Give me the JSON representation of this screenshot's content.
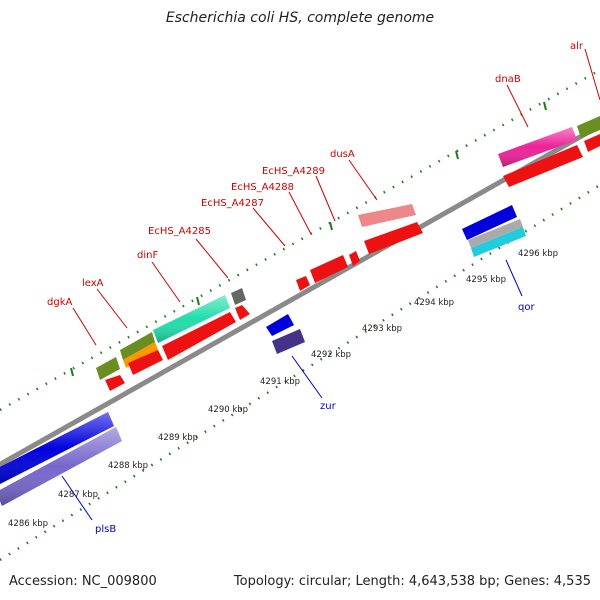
{
  "title": "Escherichia coli HS, complete genome",
  "accession_text": "Accession: NC_009800",
  "summary_text": "Topology: circular; Length: 4,643,538 bp; Genes: 4,535",
  "colors": {
    "backbone": "#888888",
    "tick": "#1a7a1a",
    "label_top": "#cc0000",
    "label_bottom": "#0000aa"
  },
  "kbp_labels": [
    "4286 kbp",
    "4287 kbp",
    "4288 kbp",
    "4289 kbp",
    "4290 kbp",
    "4291 kbp",
    "4292 kbp",
    "4293 kbp",
    "4294 kbp",
    "4295 kbp",
    "4296 kbp"
  ],
  "genes_top": [
    "dgkA",
    "lexA",
    "dinF",
    "EcHS_A4285",
    "EcHS_A4287",
    "EcHS_A4288",
    "EcHS_A4289",
    "dusA",
    "dnaB",
    "alr"
  ],
  "genes_bottom": [
    "zur",
    "qor",
    "plsB"
  ]
}
